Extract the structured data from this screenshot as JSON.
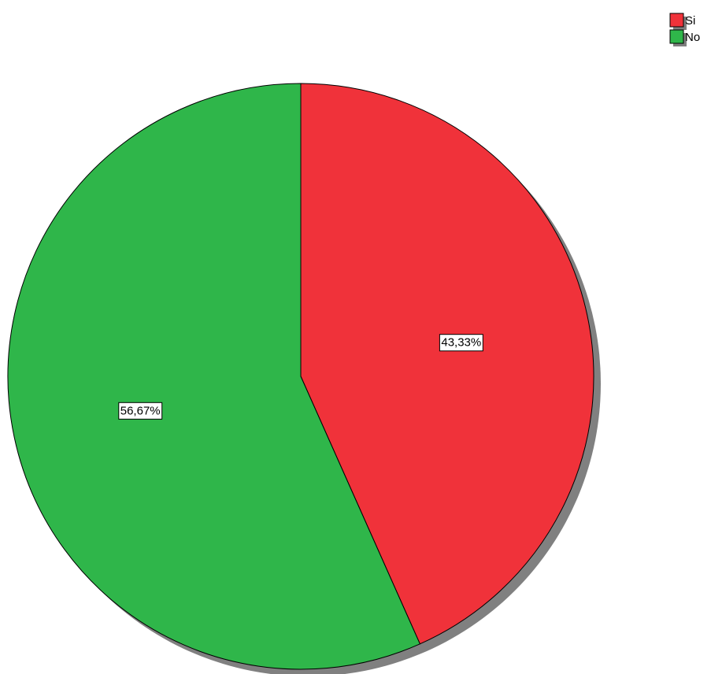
{
  "chart_data": {
    "type": "pie",
    "categories": [
      "Si",
      "No"
    ],
    "values": [
      43.33,
      56.67
    ],
    "data_labels": [
      "43,33%",
      "56,67%"
    ],
    "colors": [
      "#f0323a",
      "#2fb64a"
    ],
    "start_angle_deg": 0,
    "direction": "clockwise",
    "legend": {
      "placement": "top-right",
      "entries": [
        "Si",
        "No"
      ]
    }
  }
}
